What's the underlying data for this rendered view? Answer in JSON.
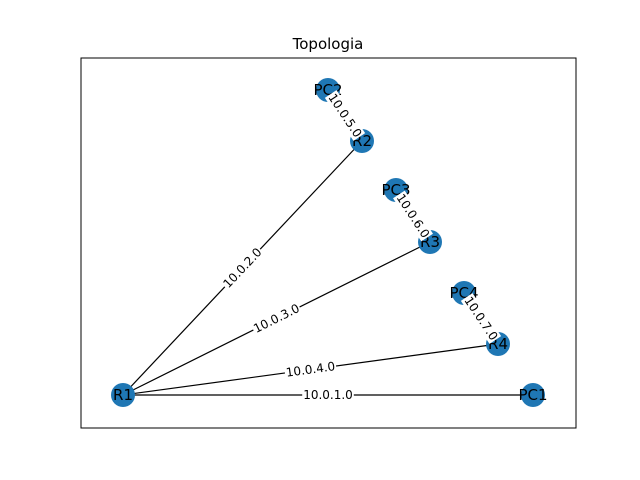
{
  "title": "Topologia",
  "colors": {
    "node": "#1f77b4",
    "edge": "#000000",
    "frame": "#000000",
    "background": "#ffffff"
  },
  "nodes": [
    {
      "id": "R1",
      "label": "R1"
    },
    {
      "id": "R2",
      "label": "R2"
    },
    {
      "id": "R3",
      "label": "R3"
    },
    {
      "id": "R4",
      "label": "R4"
    },
    {
      "id": "PC1",
      "label": "PC1"
    },
    {
      "id": "PC2",
      "label": "PC2"
    },
    {
      "id": "PC3",
      "label": "PC3"
    },
    {
      "id": "PC4",
      "label": "PC4"
    }
  ],
  "edges": [
    {
      "source": "R1",
      "target": "R2",
      "label": "10.0.2.0"
    },
    {
      "source": "R1",
      "target": "R3",
      "label": "10.0.3.0"
    },
    {
      "source": "R1",
      "target": "R4",
      "label": "10.0.4.0"
    },
    {
      "source": "R1",
      "target": "PC1",
      "label": "10.0.1.0"
    },
    {
      "source": "R2",
      "target": "PC2",
      "label": "10.0.5.0"
    },
    {
      "source": "R3",
      "target": "PC3",
      "label": "10.0.6.0"
    },
    {
      "source": "R4",
      "target": "PC4",
      "label": "10.0.7.0"
    }
  ]
}
